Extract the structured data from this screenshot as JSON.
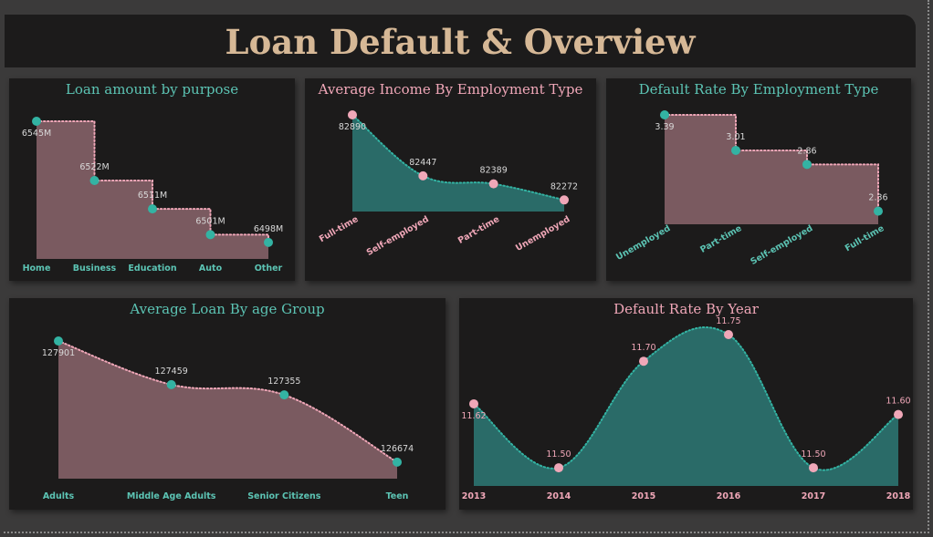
{
  "page": {
    "title": "Loan Default & Overview"
  },
  "colors": {
    "teal": "#33b3a3",
    "teal_text": "#5cc4b4",
    "pink": "#f0a7b8",
    "mauve_fill": "#7a5a60",
    "teal_fill": "#2a6b68",
    "title": "#d6b896"
  },
  "chart_data": [
    {
      "id": "loan-by-purpose",
      "type": "area",
      "title": "Loan amount by purpose",
      "title_color": "teal",
      "style": "step",
      "fill": "mauve",
      "marker": "teal",
      "label_color": "#d8d8d8",
      "tick_color": "teal",
      "tick_rotate": false,
      "categories": [
        "Home",
        "Business",
        "Education",
        "Auto",
        "Other"
      ],
      "values": [
        6545,
        6522,
        6511,
        6501,
        6498
      ],
      "labels": [
        "6545M",
        "6522M",
        "6511M",
        "6501M",
        "6498M"
      ]
    },
    {
      "id": "income-by-employment",
      "type": "area",
      "title": "Average Income By Employment Type",
      "title_color": "pink",
      "style": "smooth",
      "fill": "teal",
      "marker": "pink",
      "label_color": "#d8d8d8",
      "tick_color": "pink",
      "tick_rotate": true,
      "categories": [
        "Full-time",
        "Self-employed",
        "Part-time",
        "Unemployed"
      ],
      "values": [
        82890,
        82447,
        82389,
        82272
      ],
      "labels": [
        "82890",
        "82447",
        "82389",
        "82272"
      ]
    },
    {
      "id": "default-by-employment",
      "type": "area",
      "title": "Default Rate By Employment Type",
      "title_color": "teal",
      "style": "step",
      "fill": "mauve",
      "marker": "teal",
      "label_color": "#d8d8d8",
      "tick_color": "teal",
      "tick_rotate": true,
      "categories": [
        "Unemployed",
        "Part-time",
        "Self-employed",
        "Full-time"
      ],
      "values": [
        3.39,
        3.01,
        2.86,
        2.36
      ],
      "labels": [
        "3.39",
        "3.01",
        "2.86",
        "2.36"
      ]
    },
    {
      "id": "loan-by-age",
      "type": "area",
      "title": "Average Loan By age Group",
      "title_color": "teal",
      "style": "smooth",
      "fill": "mauve",
      "marker": "teal",
      "label_color": "#d8d8d8",
      "tick_color": "teal",
      "tick_rotate": false,
      "categories": [
        "Adults",
        "Middle Age Adults",
        "Senior Citizens",
        "Teen"
      ],
      "values": [
        127901,
        127459,
        127355,
        126674
      ],
      "labels": [
        "127901",
        "127459",
        "127355",
        "126674"
      ]
    },
    {
      "id": "default-by-year",
      "type": "area",
      "title": "Default Rate By Year",
      "title_color": "pink",
      "style": "smooth",
      "fill": "teal",
      "marker": "pink",
      "label_color": "#f0a7b8",
      "tick_color": "pink",
      "tick_rotate": false,
      "categories": [
        "2013",
        "2014",
        "2015",
        "2016",
        "2017",
        "2018"
      ],
      "values": [
        11.62,
        11.5,
        11.7,
        11.75,
        11.5,
        11.6
      ],
      "labels": [
        "11.62",
        "11.50",
        "11.70",
        "11.75",
        "11.50",
        "11.60"
      ]
    }
  ]
}
